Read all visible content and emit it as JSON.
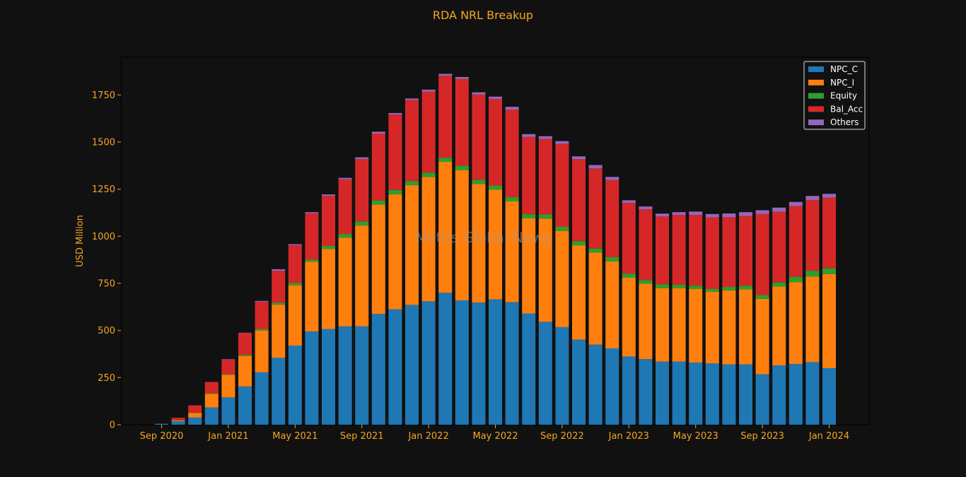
{
  "chart_data": {
    "type": "bar",
    "stacked": true,
    "title": "RDA NRL Breakup",
    "ylabel": "USD Million",
    "xlabel": "",
    "ylim": [
      0,
      1950
    ],
    "yticks": [
      0,
      250,
      500,
      750,
      1000,
      1250,
      1500,
      1750
    ],
    "xtick_labels": [
      "Sep 2020",
      "Jan 2021",
      "May 2021",
      "Sep 2021",
      "Jan 2022",
      "May 2022",
      "Sep 2022",
      "Jan 2023",
      "May 2023",
      "Sep 2023",
      "Jan 2024"
    ],
    "watermark": "Mettis Global News",
    "legend_position": "top-right",
    "grid": false,
    "categories": [
      "2020-09",
      "2020-10",
      "2020-11",
      "2020-12",
      "2021-01",
      "2021-02",
      "2021-03",
      "2021-04",
      "2021-05",
      "2021-06",
      "2021-07",
      "2021-08",
      "2021-09",
      "2021-10",
      "2021-11",
      "2021-12",
      "2022-01",
      "2022-02",
      "2022-03",
      "2022-04",
      "2022-05",
      "2022-06",
      "2022-07",
      "2022-08",
      "2022-09",
      "2022-10",
      "2022-11",
      "2022-12",
      "2023-01",
      "2023-02",
      "2023-03",
      "2023-04",
      "2023-05",
      "2023-06",
      "2023-07",
      "2023-08",
      "2023-09",
      "2023-10",
      "2023-11",
      "2023-12",
      "2024-01"
    ],
    "series": [
      {
        "name": "NPC_C",
        "color": "#1f77b4",
        "values": [
          5,
          18,
          38,
          92,
          145,
          203,
          278,
          355,
          420,
          495,
          508,
          522,
          522,
          588,
          613,
          636,
          655,
          700,
          660,
          648,
          665,
          650,
          590,
          546,
          518,
          452,
          425,
          405,
          362,
          348,
          335,
          335,
          330,
          325,
          320,
          320,
          268,
          315,
          322,
          332,
          300
        ]
      },
      {
        "name": "NPC_I",
        "color": "#ff7f0e",
        "values": [
          0,
          5,
          25,
          72,
          120,
          162,
          222,
          282,
          320,
          370,
          425,
          470,
          535,
          580,
          610,
          635,
          660,
          695,
          690,
          630,
          582,
          535,
          505,
          548,
          510,
          500,
          488,
          462,
          418,
          400,
          390,
          390,
          390,
          380,
          393,
          398,
          400,
          418,
          435,
          455,
          500
        ]
      },
      {
        "name": "Equity",
        "color": "#2ca02c",
        "values": [
          0,
          2,
          2,
          3,
          3,
          6,
          8,
          10,
          12,
          12,
          16,
          20,
          22,
          22,
          23,
          22,
          23,
          22,
          25,
          22,
          22,
          22,
          22,
          22,
          22,
          22,
          22,
          22,
          22,
          20,
          20,
          18,
          18,
          15,
          18,
          20,
          20,
          22,
          28,
          30,
          30
        ]
      },
      {
        "name": "Bal_Acc",
        "color": "#d62728",
        "values": [
          0,
          12,
          38,
          60,
          78,
          115,
          145,
          170,
          200,
          245,
          265,
          290,
          330,
          355,
          400,
          430,
          430,
          435,
          460,
          452,
          460,
          465,
          410,
          400,
          440,
          435,
          425,
          410,
          375,
          375,
          360,
          370,
          375,
          380,
          370,
          370,
          430,
          375,
          375,
          375,
          375
        ]
      },
      {
        "name": "Others",
        "color": "#9467bd",
        "values": [
          0,
          0,
          0,
          0,
          2,
          2,
          4,
          8,
          6,
          6,
          8,
          8,
          10,
          10,
          8,
          8,
          10,
          10,
          10,
          12,
          12,
          15,
          15,
          15,
          15,
          15,
          18,
          16,
          14,
          15,
          15,
          15,
          18,
          18,
          20,
          20,
          20,
          22,
          22,
          22,
          20
        ]
      }
    ]
  }
}
